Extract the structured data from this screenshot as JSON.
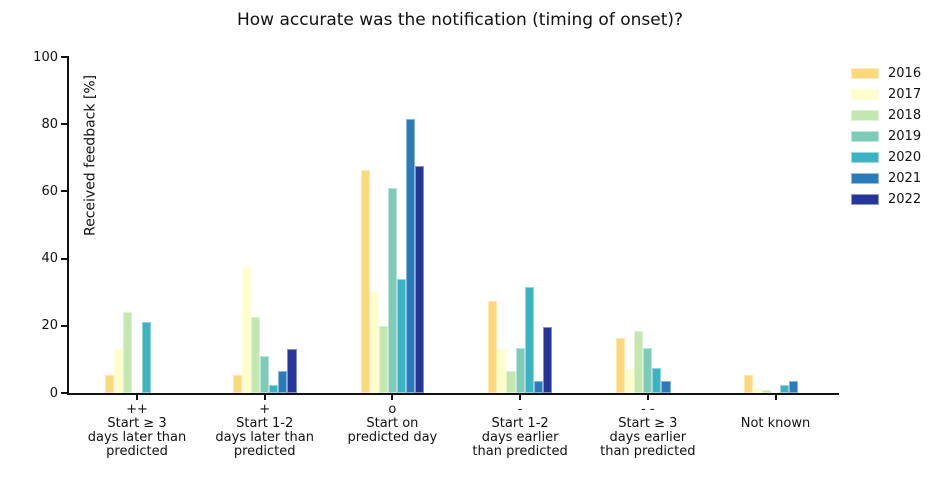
{
  "chart_data": {
    "type": "bar",
    "title": "How accurate was the notification (timing of onset)?",
    "xlabel": "",
    "ylabel": "Received feedback [%]",
    "ylim": [
      0,
      100
    ],
    "yticks": [
      0,
      20,
      40,
      60,
      80,
      100
    ],
    "grid": false,
    "legend_position": "upper-right-outside",
    "categories": [
      {
        "tick_symbol": "++",
        "label_lines": [
          "Start ≥ 3",
          "days later than",
          "predicted"
        ]
      },
      {
        "tick_symbol": "+",
        "label_lines": [
          "Start 1-2",
          "days later than",
          "predicted"
        ]
      },
      {
        "tick_symbol": "o",
        "label_lines": [
          "Start on",
          "predicted day"
        ]
      },
      {
        "tick_symbol": "-",
        "label_lines": [
          "Start 1-2",
          "days earlier",
          "than predicted"
        ]
      },
      {
        "tick_symbol": "- -",
        "label_lines": [
          "Start ≥ 3",
          "days earlier",
          "than predicted"
        ]
      },
      {
        "tick_symbol": "",
        "label_lines": [
          "Not known"
        ]
      }
    ],
    "series": [
      {
        "name": "2016",
        "color": "#fbd87c",
        "values": [
          5.5,
          5.5,
          66.5,
          27.5,
          16.5,
          5.5
        ]
      },
      {
        "name": "2017",
        "color": "#fdfec8",
        "values": [
          13,
          37.5,
          30,
          13,
          7,
          1.5
        ]
      },
      {
        "name": "2018",
        "color": "#c3e7ae",
        "values": [
          24,
          22.5,
          20,
          6.5,
          18.5,
          1
        ]
      },
      {
        "name": "2019",
        "color": "#7eccb8",
        "values": [
          0,
          11,
          61,
          13.5,
          13.5,
          0
        ]
      },
      {
        "name": "2020",
        "color": "#3cb3c3",
        "values": [
          21,
          2.5,
          34,
          31.5,
          7.5,
          2.5
        ]
      },
      {
        "name": "2021",
        "color": "#2a7bb9",
        "values": [
          0,
          6.5,
          81.5,
          3.5,
          3.5,
          3.5
        ]
      },
      {
        "name": "2022",
        "color": "#25359a",
        "values": [
          0,
          13,
          67.5,
          19.5,
          0,
          0
        ]
      }
    ]
  }
}
